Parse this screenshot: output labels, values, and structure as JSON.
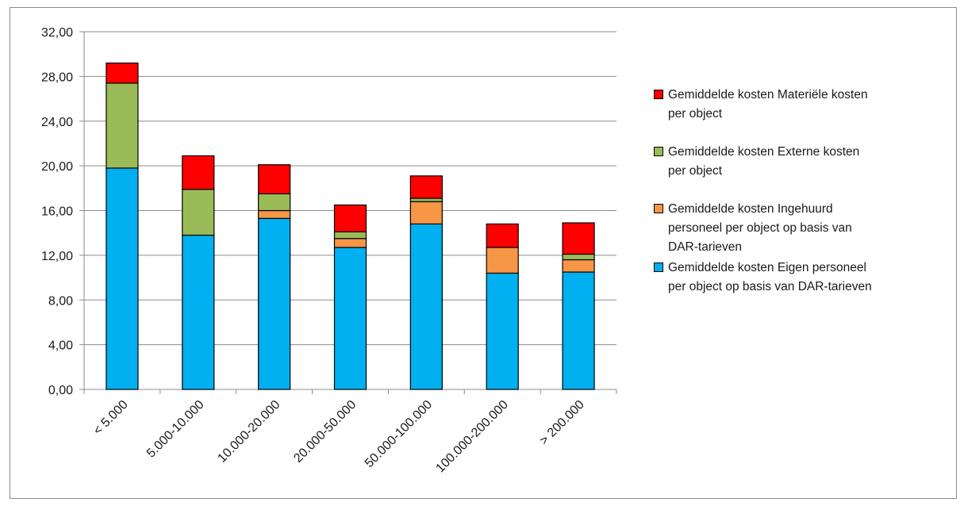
{
  "chart_data": {
    "type": "bar",
    "stacked": true,
    "title": "",
    "xlabel": "",
    "ylabel": "",
    "ylim": [
      0,
      32
    ],
    "yticks": [
      "0,00",
      "4,00",
      "8,00",
      "12,00",
      "16,00",
      "20,00",
      "24,00",
      "28,00",
      "32,00"
    ],
    "grid": true,
    "legend_position": "right",
    "categories": [
      "< 5.000",
      "5.000-10.000",
      "10.000-20.000",
      "20.000-50.000",
      "50.000-100.000",
      "100.000-200.000",
      "> 200.000"
    ],
    "series": [
      {
        "name": "Gemiddelde kosten Eigen personeel per object op basis van DAR-tarieven",
        "color": "#00b0f0",
        "values": [
          19.8,
          13.8,
          15.3,
          12.7,
          14.8,
          10.4,
          10.5
        ]
      },
      {
        "name": "Gemiddelde kosten Ingehuurd personeel per object op basis van DAR-tarieven",
        "color": "#f79646",
        "values": [
          0.0,
          0.0,
          0.7,
          0.8,
          2.0,
          2.3,
          1.1
        ]
      },
      {
        "name": "Gemiddelde kosten Externe kosten per object",
        "color": "#9bbb59",
        "values": [
          7.6,
          4.1,
          1.5,
          0.6,
          0.3,
          0.0,
          0.5
        ]
      },
      {
        "name": "Gemiddelde kosten Materiële kosten per object",
        "color": "#ff0000",
        "values": [
          1.8,
          3.0,
          2.6,
          2.4,
          2.0,
          2.1,
          2.8
        ]
      }
    ],
    "legend": [
      {
        "lines": [
          "Gemiddelde kosten Materiële kosten",
          "per object"
        ],
        "color": "#ff0000"
      },
      {
        "lines": [
          "Gemiddelde kosten Externe kosten",
          "per object"
        ],
        "color": "#9bbb59"
      },
      {
        "lines": [
          "Gemiddelde kosten Ingehuurd",
          "personeel per object op basis van",
          "DAR-tarieven"
        ],
        "color": "#f79646"
      },
      {
        "lines": [
          "Gemiddelde kosten Eigen personeel",
          "per object op basis van DAR-tarieven"
        ],
        "color": "#00b0f0"
      }
    ]
  }
}
